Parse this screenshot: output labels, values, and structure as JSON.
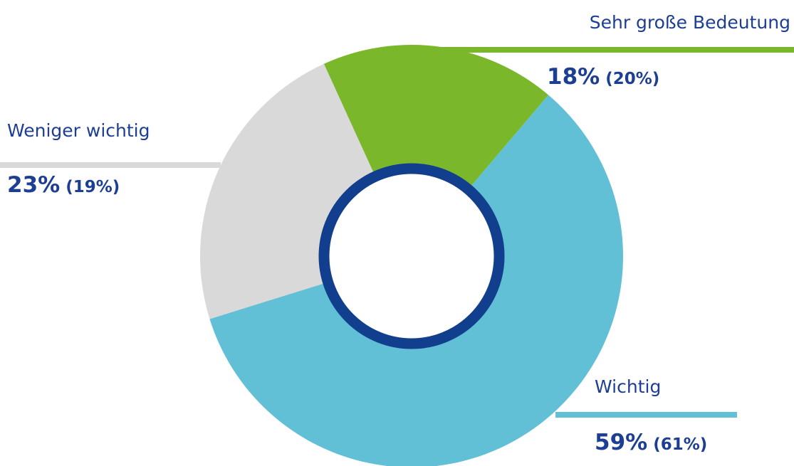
{
  "chart_data": {
    "type": "donut",
    "categories": [
      "Sehr große Bedeutung",
      "Wichtig",
      "Weniger wichtig"
    ],
    "values": [
      18,
      59,
      23
    ],
    "value_labels": [
      "18%",
      "59%",
      "23%"
    ],
    "previous_values": [
      20,
      61,
      19
    ],
    "previous_value_labels": [
      "(20%)",
      "(61%)",
      "(19%)"
    ],
    "colors": [
      "#7ab72b",
      "#62c0d6",
      "#d9d9d9"
    ]
  }
}
